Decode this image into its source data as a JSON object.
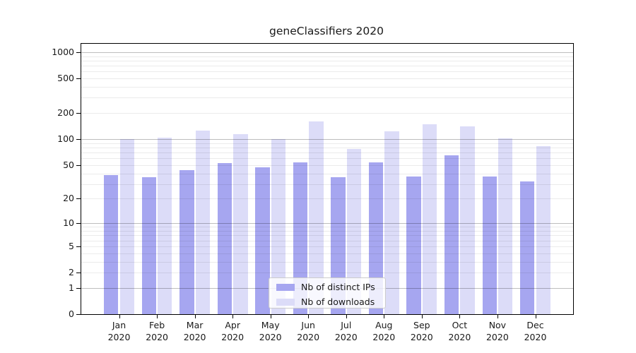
{
  "title": "geneClassifiers 2020",
  "chart_data": {
    "type": "bar",
    "title": "geneClassifiers 2020",
    "categories": [
      "Jan 2020",
      "Feb 2020",
      "Mar 2020",
      "Apr 2020",
      "May 2020",
      "Jun 2020",
      "Jul 2020",
      "Aug 2020",
      "Sep 2020",
      "Oct 2020",
      "Nov 2020",
      "Dec 2020"
    ],
    "series": [
      {
        "name": "Nb of distinct IPs",
        "color": "#a6a6f0",
        "values": [
          38,
          36,
          44,
          53,
          47,
          54,
          36,
          54,
          37,
          65,
          37,
          32
        ]
      },
      {
        "name": "Nb of downloads",
        "color": "#dcdcf8",
        "values": [
          100,
          104,
          125,
          114,
          100,
          160,
          77,
          123,
          149,
          140,
          102,
          83
        ]
      }
    ],
    "xlabel": "",
    "ylabel": "",
    "yscale": "log1p",
    "ytick_labels": [
      "0",
      "1",
      "2",
      "5",
      "10",
      "20",
      "50",
      "100",
      "200",
      "500",
      "1000"
    ],
    "yticks": [
      0,
      1,
      2,
      5,
      10,
      20,
      50,
      100,
      200,
      500,
      1000
    ],
    "ylim": [
      0,
      1250
    ],
    "grid": "major and minor horizontal gridlines, drawn above bars",
    "legend_position": "lower center inside plot"
  },
  "colors": {
    "bar_distinct_ips": "#a6a6f0",
    "bar_downloads": "#dcdcf8",
    "axis_spine": "#000000",
    "text": "#191919",
    "grid_major": "#bdbdbd",
    "grid_minor": "#ebebeb",
    "legend_border": "#cccccc",
    "legend_background": "rgba(255,255,255,0.8)"
  }
}
